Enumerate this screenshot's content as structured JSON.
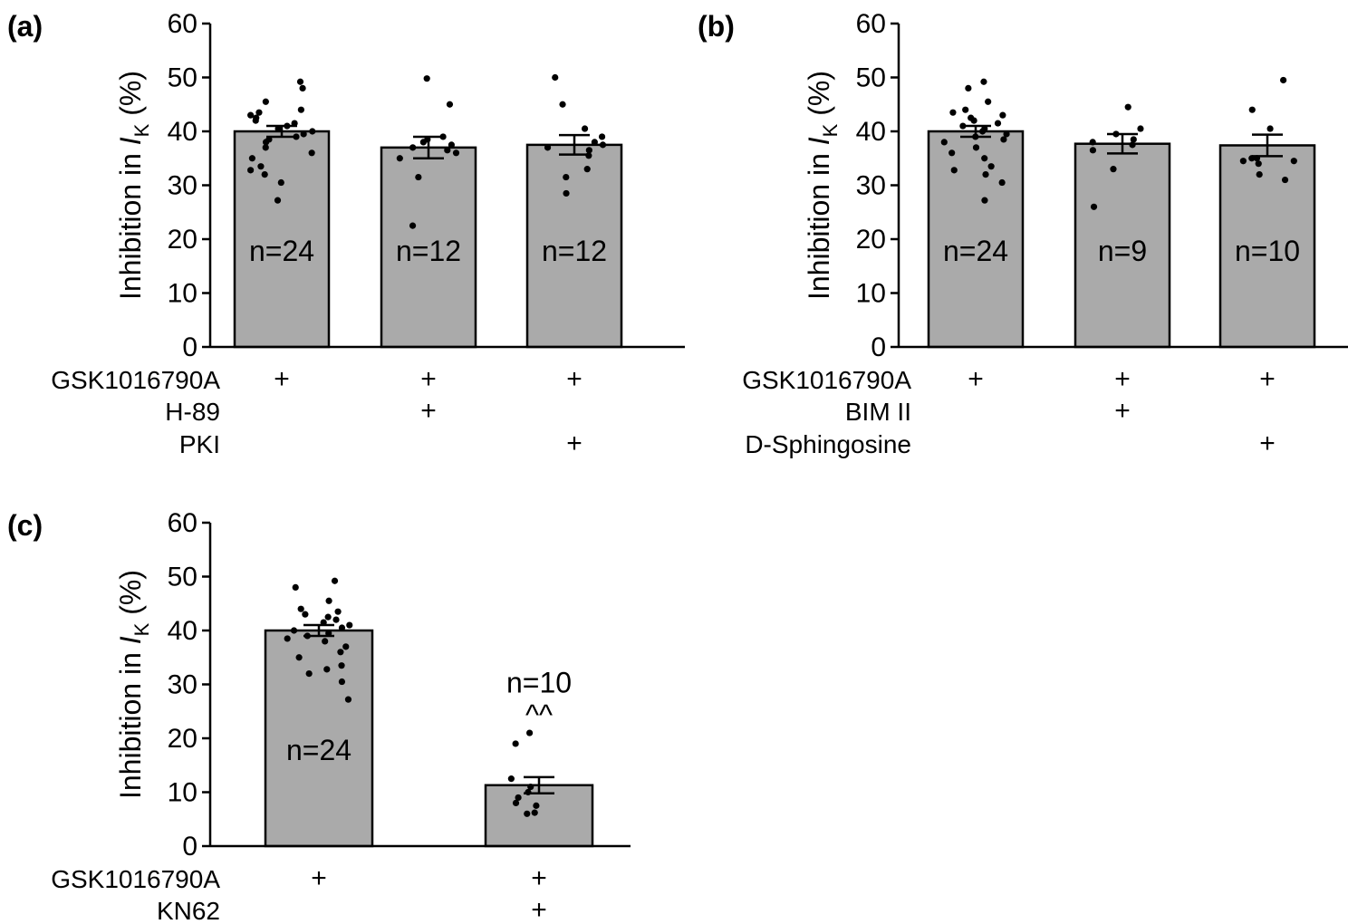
{
  "chart_data": [
    {
      "type": "bar",
      "panel_label": "(a)",
      "ylabel_prefix": "Inhibition in ",
      "ylabel_symbol": "I",
      "ylabel_subscript": "K",
      "ylabel_suffix": " (%)",
      "ylim": [
        0,
        60
      ],
      "yticks": [
        "0",
        "10",
        "20",
        "30",
        "40",
        "50",
        "60"
      ],
      "bars": [
        {
          "mean": 40,
          "sem": 1.0,
          "n_label": "n=24",
          "n_pos": "inside",
          "points": [
            27.2,
            30.5,
            32,
            32.8,
            33.5,
            35,
            36,
            37,
            38,
            38.5,
            39,
            39.5,
            40,
            40.5,
            41,
            41.5,
            42,
            42.5,
            43,
            43.5,
            44,
            45.5,
            48,
            49.2
          ]
        },
        {
          "mean": 37,
          "sem": 2.0,
          "n_label": "n=12",
          "n_pos": "inside",
          "points": [
            22.5,
            31.5,
            35,
            36,
            36.5,
            37,
            37.5,
            38,
            38.5,
            39,
            45,
            49.8
          ]
        },
        {
          "mean": 37.5,
          "sem": 1.8,
          "n_label": "n=12",
          "n_pos": "inside",
          "points": [
            28.5,
            31.5,
            33,
            35.5,
            36.5,
            37,
            37.5,
            38,
            39,
            40.5,
            45,
            50
          ]
        }
      ],
      "treatments": [
        {
          "name": "GSK1016790A",
          "signs": [
            "+",
            "+",
            "+"
          ]
        },
        {
          "name": "H-89",
          "signs": [
            "",
            "+",
            ""
          ]
        },
        {
          "name": "PKI",
          "signs": [
            "",
            "",
            "+"
          ]
        }
      ]
    },
    {
      "type": "bar",
      "panel_label": "(b)",
      "ylabel_prefix": "Inhibition in ",
      "ylabel_symbol": "I",
      "ylabel_subscript": "K",
      "ylabel_suffix": " (%)",
      "ylim": [
        0,
        60
      ],
      "yticks": [
        "0",
        "10",
        "20",
        "30",
        "40",
        "50",
        "60"
      ],
      "bars": [
        {
          "mean": 40,
          "sem": 1.0,
          "n_label": "n=24",
          "n_pos": "inside",
          "points": [
            27.2,
            30.5,
            32,
            32.8,
            33.5,
            35,
            36,
            37,
            38,
            38.5,
            39,
            39.5,
            40,
            40.5,
            41,
            41.5,
            42,
            42.5,
            43,
            43.5,
            44,
            45.5,
            48,
            49.2
          ]
        },
        {
          "mean": 37.7,
          "sem": 1.8,
          "n_label": "n=9",
          "n_pos": "inside",
          "points": [
            26,
            33,
            36.5,
            37.5,
            38,
            38.5,
            39.5,
            40.5,
            44.5
          ]
        },
        {
          "mean": 37.4,
          "sem": 2.0,
          "n_label": "n=10",
          "n_pos": "inside",
          "points": [
            31,
            32,
            34,
            34.5,
            34.5,
            35,
            35,
            40.5,
            44,
            49.5
          ]
        }
      ],
      "treatments": [
        {
          "name": "GSK1016790A",
          "signs": [
            "+",
            "+",
            "+"
          ]
        },
        {
          "name": "BIM II",
          "signs": [
            "",
            "+",
            ""
          ]
        },
        {
          "name": "D-Sphingosine",
          "signs": [
            "",
            "",
            "+"
          ]
        }
      ]
    },
    {
      "type": "bar",
      "panel_label": "(c)",
      "ylabel_prefix": "Inhibition in ",
      "ylabel_symbol": "I",
      "ylabel_subscript": "K",
      "ylabel_suffix": " (%)",
      "ylim": [
        0,
        60
      ],
      "yticks": [
        "0",
        "10",
        "20",
        "30",
        "40",
        "50",
        "60"
      ],
      "bars": [
        {
          "mean": 40,
          "sem": 1.0,
          "n_label": "n=24",
          "n_pos": "inside",
          "points": [
            27.2,
            30.5,
            32,
            32.8,
            33.5,
            35,
            36,
            37,
            38,
            38.5,
            39,
            39.5,
            40,
            40.5,
            41,
            41.5,
            42,
            42.5,
            43,
            43.5,
            44,
            45.5,
            48,
            49.2
          ]
        },
        {
          "mean": 11.3,
          "sem": 1.5,
          "n_label": "n=10",
          "n_pos": "above",
          "sig_label": "^^",
          "points": [
            6,
            6.2,
            7.5,
            8,
            9,
            10,
            11,
            12.5,
            19,
            21
          ]
        }
      ],
      "treatments": [
        {
          "name": "GSK1016790A",
          "signs": [
            "+",
            "+"
          ]
        },
        {
          "name": "KN62",
          "signs": [
            "",
            "+"
          ]
        }
      ]
    }
  ]
}
